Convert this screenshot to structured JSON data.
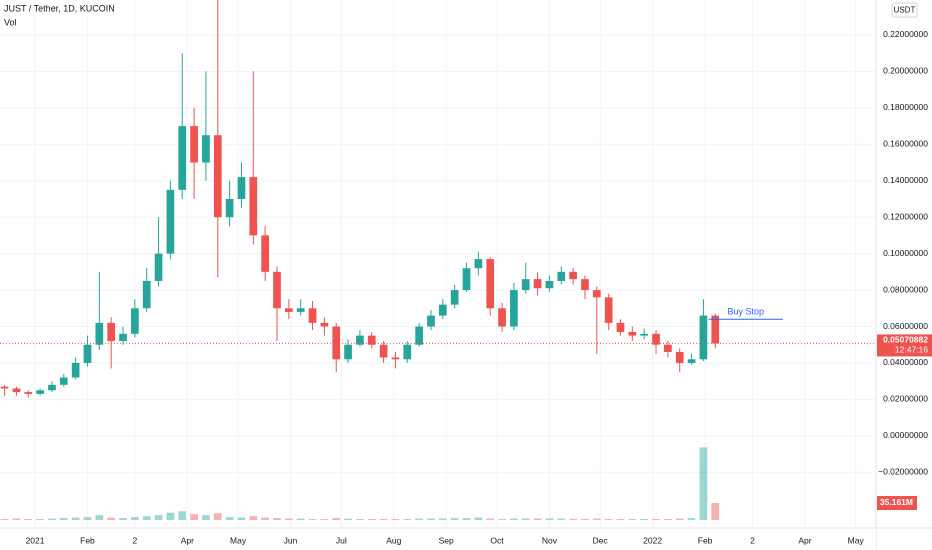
{
  "chart_data": {
    "type": "candlestick",
    "title": "JUST / Tether, 1D, KUCOIN",
    "volume_title": "Vol",
    "currency": "USDT",
    "up_color": "#26a69a",
    "down_color": "#ef5350",
    "grid": true,
    "x": [
      -18,
      -11,
      -4,
      3,
      10,
      17,
      24,
      31,
      38,
      45,
      52,
      59,
      66,
      73,
      80,
      87,
      94,
      101,
      108,
      115,
      122,
      129,
      136,
      143,
      150,
      157,
      164,
      171,
      178,
      185,
      192,
      199,
      206,
      213,
      220,
      227,
      234,
      241,
      248,
      255,
      262,
      269,
      276,
      283,
      290,
      297,
      304,
      311,
      318,
      325,
      332,
      339,
      346,
      353,
      360,
      367,
      374,
      381,
      388,
      395,
      402
    ],
    "open": [
      0.027,
      0.026,
      0.024,
      0.023,
      0.025,
      0.028,
      0.032,
      0.04,
      0.05,
      0.062,
      0.052,
      0.056,
      0.07,
      0.085,
      0.1,
      0.135,
      0.17,
      0.15,
      0.165,
      0.12,
      0.13,
      0.142,
      0.11,
      0.09,
      0.07,
      0.068,
      0.07,
      0.062,
      0.06,
      0.042,
      0.05,
      0.055,
      0.05,
      0.043,
      0.042,
      0.05,
      0.06,
      0.066,
      0.072,
      0.08,
      0.092,
      0.097,
      0.07,
      0.06,
      0.08,
      0.086,
      0.081,
      0.085,
      0.09,
      0.086,
      0.08,
      0.076,
      0.062,
      0.057,
      0.055,
      0.056,
      0.05,
      0.046,
      0.04,
      0.042,
      0.066
    ],
    "high": [
      0.028,
      0.027,
      0.025,
      0.026,
      0.03,
      0.034,
      0.043,
      0.055,
      0.09,
      0.065,
      0.06,
      0.075,
      0.092,
      0.12,
      0.14,
      0.21,
      0.18,
      0.2,
      0.24,
      0.14,
      0.15,
      0.2,
      0.115,
      0.093,
      0.075,
      0.075,
      0.074,
      0.065,
      0.062,
      0.053,
      0.058,
      0.057,
      0.052,
      0.046,
      0.052,
      0.062,
      0.069,
      0.075,
      0.083,
      0.095,
      0.101,
      0.098,
      0.073,
      0.084,
      0.095,
      0.09,
      0.088,
      0.093,
      0.092,
      0.088,
      0.082,
      0.078,
      0.064,
      0.06,
      0.059,
      0.058,
      0.052,
      0.048,
      0.045,
      0.075,
      0.067
    ],
    "low": [
      0.022,
      0.022,
      0.021,
      0.022,
      0.024,
      0.027,
      0.031,
      0.038,
      0.047,
      0.037,
      0.05,
      0.054,
      0.068,
      0.082,
      0.097,
      0.13,
      0.13,
      0.14,
      0.087,
      0.115,
      0.125,
      0.105,
      0.085,
      0.052,
      0.064,
      0.066,
      0.058,
      0.055,
      0.035,
      0.04,
      0.049,
      0.048,
      0.04,
      0.037,
      0.04,
      0.049,
      0.058,
      0.064,
      0.07,
      0.079,
      0.088,
      0.066,
      0.057,
      0.058,
      0.078,
      0.077,
      0.079,
      0.083,
      0.083,
      0.075,
      0.045,
      0.058,
      0.055,
      0.052,
      0.053,
      0.045,
      0.043,
      0.035,
      0.039,
      0.041,
      0.048
    ],
    "close": [
      0.026,
      0.024,
      0.023,
      0.025,
      0.028,
      0.032,
      0.04,
      0.05,
      0.062,
      0.052,
      0.056,
      0.07,
      0.085,
      0.1,
      0.135,
      0.17,
      0.15,
      0.165,
      0.12,
      0.13,
      0.142,
      0.11,
      0.09,
      0.07,
      0.068,
      0.07,
      0.062,
      0.06,
      0.042,
      0.05,
      0.055,
      0.05,
      0.043,
      0.042,
      0.05,
      0.06,
      0.066,
      0.072,
      0.08,
      0.092,
      0.097,
      0.07,
      0.06,
      0.08,
      0.086,
      0.081,
      0.085,
      0.09,
      0.086,
      0.08,
      0.076,
      0.062,
      0.057,
      0.055,
      0.056,
      0.05,
      0.046,
      0.04,
      0.042,
      0.066,
      0.05070882
    ],
    "volume": [
      2,
      3,
      2,
      2,
      3,
      4,
      5,
      6,
      10,
      5,
      4,
      6,
      8,
      10,
      15,
      18,
      12,
      10,
      14,
      6,
      5,
      8,
      5,
      4,
      3,
      3,
      2,
      2,
      4,
      3,
      2,
      2,
      2,
      2,
      2,
      3,
      3,
      3,
      4,
      4,
      5,
      3,
      2,
      3,
      3,
      3,
      3,
      3,
      2,
      2,
      3,
      2,
      2,
      2,
      2,
      2,
      2,
      3,
      4,
      150,
      35.161
    ],
    "volume_last_label": "35.161M",
    "volume_lim": [
      0,
      252
    ],
    "countdown": "12:47:16",
    "annotation": {
      "text": "Buy Stop",
      "value": 0.064,
      "x": [
        398,
        442
      ]
    },
    "xlim": [
      -20.7,
      497
    ],
    "ylim": [
      -0.0462,
      0.2392
    ],
    "xticks": [
      {
        "value": 0,
        "label": "2021"
      },
      {
        "value": 31,
        "label": "Feb"
      },
      {
        "value": 59,
        "label": "2"
      },
      {
        "value": 90,
        "label": "Apr"
      },
      {
        "value": 120,
        "label": "May"
      },
      {
        "value": 151,
        "label": "Jun"
      },
      {
        "value": 181,
        "label": "Jul"
      },
      {
        "value": 212,
        "label": "Aug"
      },
      {
        "value": 243,
        "label": "Sep"
      },
      {
        "value": 273,
        "label": "Oct"
      },
      {
        "value": 304,
        "label": "Nov"
      },
      {
        "value": 334,
        "label": "Dec"
      },
      {
        "value": 365,
        "label": "2022"
      },
      {
        "value": 396,
        "label": "Feb"
      },
      {
        "value": 424,
        "label": "2"
      },
      {
        "value": 455,
        "label": "Apr"
      },
      {
        "value": 485,
        "label": "May"
      }
    ],
    "yticks": [
      {
        "value": -0.02,
        "label": "−0.02000000"
      },
      {
        "value": 0,
        "label": "0.00000000"
      },
      {
        "value": 0.02,
        "label": "0.02000000"
      },
      {
        "value": 0.04,
        "label": "0.04000000"
      },
      {
        "value": 0.06,
        "label": "0.06000000"
      },
      {
        "value": 0.08,
        "label": "0.08000000"
      },
      {
        "value": 0.1,
        "label": "0.10000000"
      },
      {
        "value": 0.12,
        "label": "0.12000000"
      },
      {
        "value": 0.14,
        "label": "0.14000000"
      },
      {
        "value": 0.16,
        "label": "0.16000000"
      },
      {
        "value": 0.18,
        "label": "0.18000000"
      },
      {
        "value": 0.2,
        "label": "0.20000000"
      },
      {
        "value": 0.22,
        "label": "0.22000000"
      }
    ]
  }
}
